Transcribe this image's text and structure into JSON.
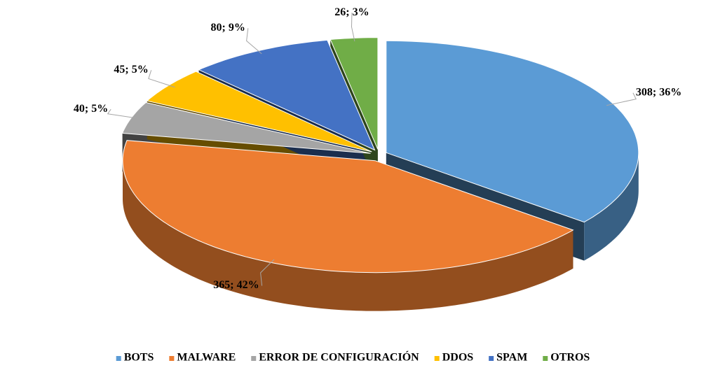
{
  "chart_data": {
    "type": "pie",
    "categories": [
      "BOTS",
      "MALWARE",
      "ERROR DE CONFIGURACIÓN",
      "DDOS",
      "SPAM",
      "OTROS"
    ],
    "values": [
      308,
      365,
      40,
      45,
      80,
      26
    ],
    "value_labels": [
      "308; 36%",
      "365; 42%",
      "40; 5%",
      "45; 5%",
      "80; 9%",
      "26; 3%"
    ],
    "colors": [
      "#5b9bd5",
      "#ed7d31",
      "#a5a5a5",
      "#ffc000",
      "#4472c4",
      "#70ad47"
    ],
    "legend": "bottom"
  }
}
